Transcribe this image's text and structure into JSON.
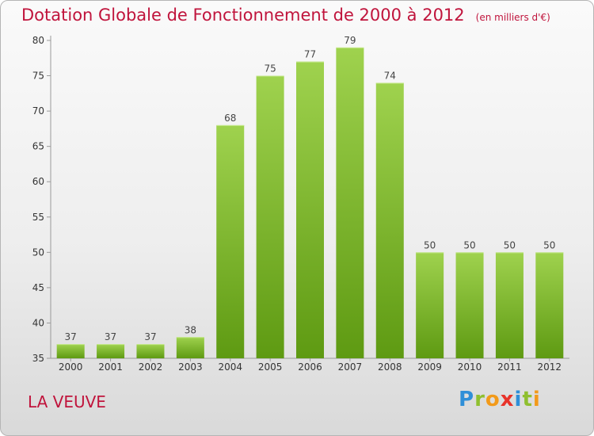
{
  "title": "Dotation Globale de Fonctionnement de 2000 à 2012",
  "unit_note": "(en milliers d'€)",
  "commune": "LA VEUVE",
  "logo": {
    "letters": [
      "P",
      "r",
      "o",
      "x",
      "i",
      "t",
      "i"
    ],
    "colors": [
      "#2f8fd8",
      "#8fbf2f",
      "#f29a1a",
      "#e8332a",
      "#2f8fd8",
      "#8fbf2f",
      "#f29a1a"
    ]
  },
  "colors": {
    "title": "#c0143c",
    "bar_light": "#9fd24e",
    "bar_dark": "#5e9a12"
  },
  "chart_data": {
    "type": "bar",
    "title": "Dotation Globale de Fonctionnement de 2000 à 2012",
    "categories": [
      "2000",
      "2001",
      "2002",
      "2003",
      "2004",
      "2005",
      "2006",
      "2007",
      "2008",
      "2009",
      "2010",
      "2011",
      "2012"
    ],
    "values": [
      37,
      37,
      37,
      38,
      68,
      75,
      77,
      79,
      74,
      50,
      50,
      50,
      50
    ],
    "ylim": [
      35,
      80
    ],
    "yticks": [
      35,
      40,
      45,
      50,
      55,
      60,
      65,
      70,
      75,
      80
    ],
    "grid": false,
    "data_labels": true
  }
}
